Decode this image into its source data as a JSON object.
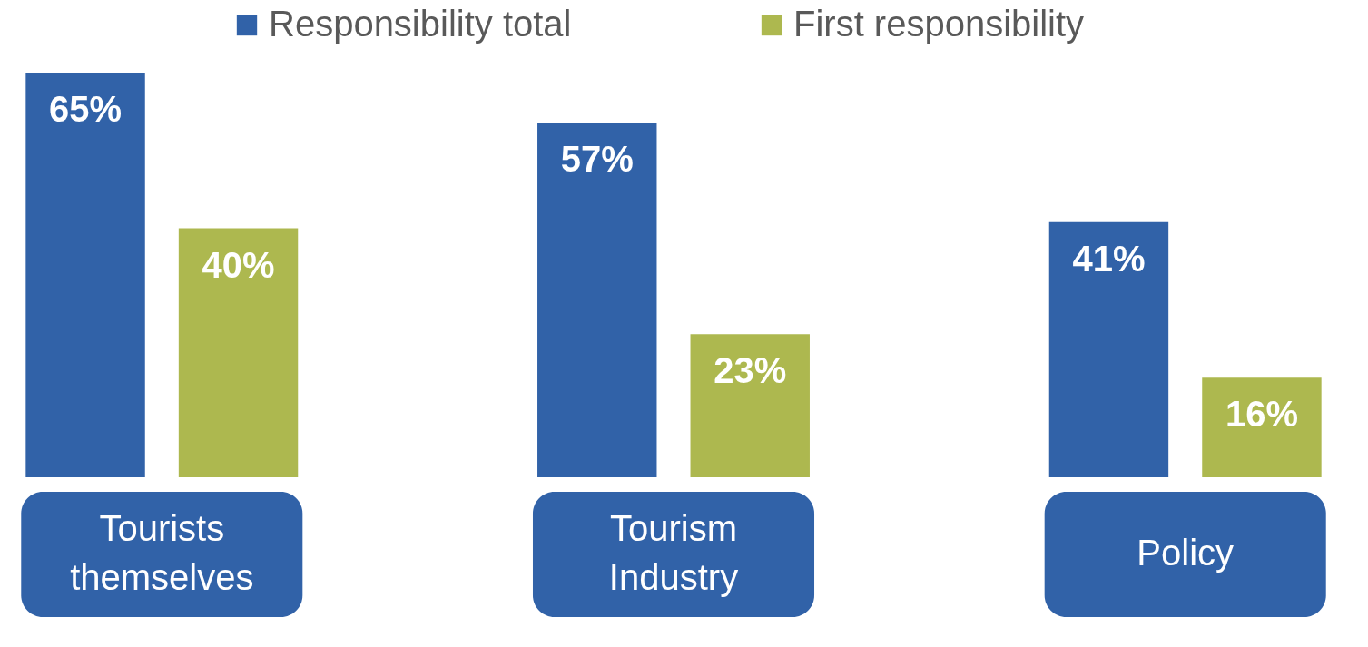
{
  "chart_data": {
    "type": "bar",
    "categories": [
      "Tourists themselves",
      "Tourism Industry",
      "Policy"
    ],
    "series": [
      {
        "name": "Responsibility total",
        "color": "#3162a8",
        "values": [
          65,
          57,
          41
        ],
        "value_labels": [
          "65%",
          "57%",
          "41%"
        ]
      },
      {
        "name": "First responsibility",
        "color": "#adb84f",
        "values": [
          40,
          23,
          16
        ],
        "value_labels": [
          "40%",
          "23%",
          "16%"
        ]
      }
    ],
    "legend": "top",
    "grid": false
  }
}
